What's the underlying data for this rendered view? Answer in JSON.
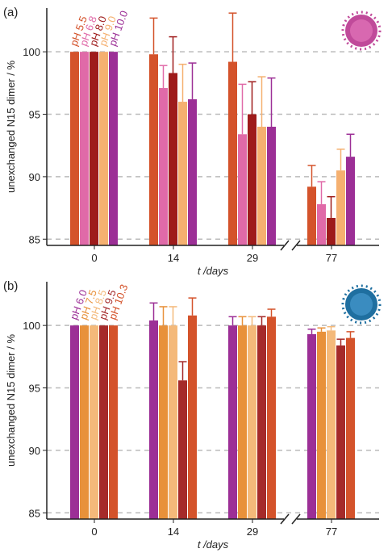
{
  "chart_data": [
    {
      "type": "bar",
      "panel_label": "(a)",
      "ylabel": "unexchanged N15 dimer / %",
      "xlabel": "t /days",
      "categories": [
        "0",
        "14",
        "29",
        "77"
      ],
      "ylim": [
        84.5,
        103.5
      ],
      "yticks": [
        85,
        90,
        95,
        100
      ],
      "grid": true,
      "series": [
        {
          "name": "pH 5.5",
          "color": "#d4532b",
          "values": [
            100,
            99.8,
            99.2,
            89.2
          ],
          "errors": [
            null,
            2.9,
            3.9,
            1.7
          ]
        },
        {
          "name": "pH 6.8",
          "color": "#e06aa8",
          "values": [
            100,
            97.1,
            93.4,
            87.8
          ],
          "errors": [
            null,
            1.8,
            4.0,
            1.8
          ]
        },
        {
          "name": "pH 8.0",
          "color": "#9e1b1b",
          "values": [
            100,
            98.3,
            95.0,
            86.7
          ],
          "errors": [
            null,
            2.9,
            2.6,
            1.7
          ]
        },
        {
          "name": "pH 9.0",
          "color": "#f5b070",
          "values": [
            100,
            96.0,
            94.0,
            90.5
          ],
          "errors": [
            null,
            3.0,
            4.0,
            1.7
          ]
        },
        {
          "name": "pH 10.0",
          "color": "#9c2f96",
          "values": [
            100,
            96.2,
            94.0,
            91.6
          ],
          "errors": [
            null,
            2.9,
            3.9,
            1.8
          ]
        }
      ]
    },
    {
      "type": "bar",
      "panel_label": "(b)",
      "ylabel": "unexchanged N15 dimer / %",
      "xlabel": "t /days",
      "categories": [
        "0",
        "14",
        "29",
        "77"
      ],
      "ylim": [
        84.5,
        103.5
      ],
      "yticks": [
        85,
        90,
        95,
        100
      ],
      "grid": true,
      "series": [
        {
          "name": "pH 6.0",
          "color": "#9c2f96",
          "values": [
            100,
            100.4,
            100.0,
            99.3
          ],
          "errors": [
            null,
            1.4,
            0.7,
            0.4
          ]
        },
        {
          "name": "pH 7.5",
          "color": "#e8913a",
          "values": [
            100,
            100.0,
            100.0,
            99.5
          ],
          "errors": [
            null,
            1.5,
            0.7,
            0.3
          ]
        },
        {
          "name": "pH 8.5",
          "color": "#f4b97a",
          "values": [
            100,
            100.0,
            100.0,
            99.6
          ],
          "errors": [
            null,
            1.5,
            0.7,
            0.3
          ]
        },
        {
          "name": "pH 9.5",
          "color": "#a52a2a",
          "values": [
            100,
            95.6,
            100.0,
            98.4
          ],
          "errors": [
            null,
            1.5,
            0.7,
            0.5
          ]
        },
        {
          "name": "pH 10.3",
          "color": "#d4532b",
          "values": [
            100,
            100.8,
            100.7,
            99.0
          ],
          "errors": [
            null,
            1.4,
            0.6,
            0.5
          ]
        }
      ]
    }
  ]
}
